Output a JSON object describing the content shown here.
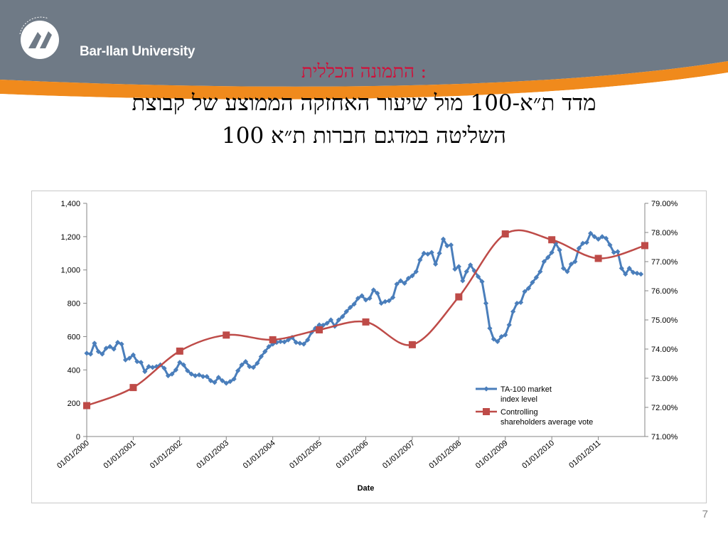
{
  "branding": {
    "logo_text": "Bar-Ilan University",
    "logo_tagline": "Traditions of Excellence",
    "colors": {
      "band_gray": "#6f7a86",
      "band_orange": "#f08a1c"
    }
  },
  "title": {
    "subtitle": ": התמונה הכללית",
    "line1": "מדד ת״א-100 מול שיעור האחזקה הממוצע של קבוצת",
    "line2": "השליטה במדגם חברות ת״א 100"
  },
  "page_number": "7",
  "chart_data": {
    "type": "line",
    "xlabel": "Date",
    "x_ticks": [
      "01/01/2000",
      "01/01/2001",
      "01/01/2002",
      "01/01/2003",
      "01/01/2004",
      "01/01/2005",
      "01/01/2006",
      "01/01/2007",
      "01/01/2008",
      "01/01/2009",
      "01/01/2010",
      "01/01/2011"
    ],
    "y_left": {
      "ticks": [
        "0",
        "200",
        "400",
        "600",
        "800",
        "1,000",
        "1,200",
        "1,400"
      ],
      "min": 0,
      "max": 1400
    },
    "y_right": {
      "ticks": [
        "71.00%",
        "72.00%",
        "73.00%",
        "74.00%",
        "75.00%",
        "76.00%",
        "77.00%",
        "78.00%",
        "79.00%"
      ],
      "min": 71,
      "max": 79
    },
    "legend_position": "lower-right",
    "series": [
      {
        "name": "TA-100 market index level",
        "axis": "left",
        "color": "#4a7ebb",
        "marker": "diamond",
        "x": [
          2000.0,
          2000.0833,
          2000.1667,
          2000.25,
          2000.3333,
          2000.4167,
          2000.5,
          2000.5833,
          2000.6667,
          2000.75,
          2000.8333,
          2000.9167,
          2001.0,
          2001.0833,
          2001.1667,
          2001.25,
          2001.3333,
          2001.4167,
          2001.5,
          2001.5833,
          2001.6667,
          2001.75,
          2001.8333,
          2001.9167,
          2002.0,
          2002.0833,
          2002.1667,
          2002.25,
          2002.3333,
          2002.4167,
          2002.5,
          2002.5833,
          2002.6667,
          2002.75,
          2002.8333,
          2002.9167,
          2003.0,
          2003.0833,
          2003.1667,
          2003.25,
          2003.3333,
          2003.4167,
          2003.5,
          2003.5833,
          2003.6667,
          2003.75,
          2003.8333,
          2003.9167,
          2004.0,
          2004.0833,
          2004.1667,
          2004.25,
          2004.3333,
          2004.4167,
          2004.5,
          2004.5833,
          2004.6667,
          2004.75,
          2004.8333,
          2004.9167,
          2005.0,
          2005.0833,
          2005.1667,
          2005.25,
          2005.3333,
          2005.4167,
          2005.5,
          2005.5833,
          2005.6667,
          2005.75,
          2005.8333,
          2005.9167,
          2006.0,
          2006.0833,
          2006.1667,
          2006.25,
          2006.3333,
          2006.4167,
          2006.5,
          2006.5833,
          2006.6667,
          2006.75,
          2006.8333,
          2006.9167,
          2007.0,
          2007.0833,
          2007.1667,
          2007.25,
          2007.3333,
          2007.4167,
          2007.5,
          2007.5833,
          2007.6667,
          2007.75,
          2007.8333,
          2007.9167,
          2008.0,
          2008.0833,
          2008.1667,
          2008.25,
          2008.3333,
          2008.4167,
          2008.5,
          2008.5833,
          2008.6667,
          2008.75,
          2008.8333,
          2008.9167,
          2009.0,
          2009.0833,
          2009.1667,
          2009.25,
          2009.3333,
          2009.4167,
          2009.5,
          2009.5833,
          2009.6667,
          2009.75,
          2009.8333,
          2009.9167,
          2010.0,
          2010.0833,
          2010.1667,
          2010.25,
          2010.3333,
          2010.4167,
          2010.5,
          2010.5833,
          2010.6667,
          2010.75,
          2010.8333,
          2010.9167,
          2011.0,
          2011.0833,
          2011.1667,
          2011.25,
          2011.3333,
          2011.4167,
          2011.5,
          2011.5833,
          2011.6667,
          2011.75,
          2011.8333,
          2011.9167
        ],
        "values": [
          500,
          495,
          560,
          510,
          495,
          530,
          540,
          525,
          565,
          555,
          460,
          470,
          490,
          450,
          445,
          390,
          420,
          415,
          420,
          430,
          410,
          365,
          375,
          400,
          445,
          430,
          395,
          375,
          365,
          370,
          360,
          360,
          335,
          325,
          355,
          335,
          320,
          330,
          345,
          395,
          430,
          450,
          420,
          415,
          440,
          480,
          510,
          540,
          555,
          565,
          570,
          568,
          580,
          595,
          565,
          560,
          555,
          580,
          625,
          650,
          670,
          668,
          680,
          700,
          662,
          700,
          720,
          750,
          775,
          795,
          830,
          845,
          820,
          830,
          880,
          860,
          800,
          810,
          815,
          835,
          915,
          935,
          920,
          950,
          965,
          990,
          1060,
          1100,
          1095,
          1105,
          1035,
          1100,
          1185,
          1145,
          1150,
          1005,
          1020,
          935,
          990,
          1030,
          995,
          960,
          930,
          800,
          650,
          585,
          570,
          600,
          610,
          670,
          750,
          800,
          805,
          870,
          890,
          925,
          955,
          990,
          1050,
          1075,
          1105,
          1160,
          1120,
          1010,
          990,
          1035,
          1050,
          1130,
          1160,
          1165,
          1220,
          1200,
          1185,
          1200,
          1190,
          1150,
          1105,
          1110,
          1010,
          975,
          1010,
          985,
          980,
          975
        ]
      },
      {
        "name": "Controlling shareholders average vote",
        "axis": "right",
        "color": "#be4b48",
        "marker": "square",
        "x": [
          2000.0,
          2001.0,
          2002.0,
          2003.0,
          2004.0,
          2005.0,
          2006.0,
          2007.0,
          2008.0,
          2009.0,
          2010.0,
          2011.0,
          2012.0
        ],
        "values": [
          72.06,
          72.68,
          73.93,
          74.48,
          74.32,
          74.66,
          74.93,
          74.15,
          75.79,
          77.95,
          77.75,
          77.11,
          77.55
        ]
      }
    ]
  }
}
